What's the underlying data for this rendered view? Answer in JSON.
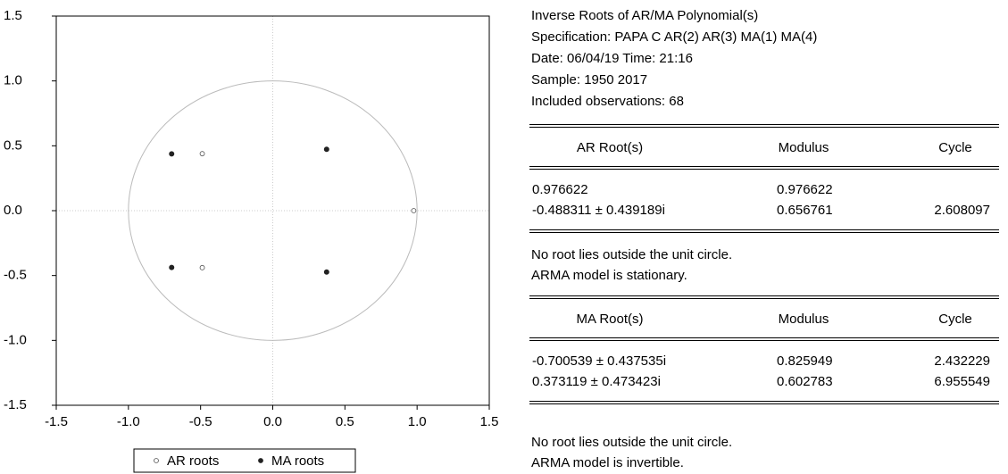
{
  "chart_data": {
    "type": "scatter",
    "series": [
      {
        "name": "AR roots",
        "color": "#555555",
        "marker": "open",
        "x": [
          0.976622,
          -0.488311,
          -0.488311
        ],
        "values": [
          0,
          0.439189,
          -0.439189
        ]
      },
      {
        "name": "MA roots",
        "color": "#222222",
        "marker": "filled",
        "x": [
          -0.700539,
          -0.700539,
          0.373119,
          0.373119
        ],
        "values": [
          0.437535,
          -0.437535,
          0.473423,
          -0.473423
        ]
      }
    ],
    "xlim": [
      -1.5,
      1.5
    ],
    "ylim": [
      -1.5,
      1.5
    ],
    "xticks": [
      -1.5,
      {
        "value": -1,
        "label": "-1.0"
      },
      -0.5,
      {
        "value": 0,
        "label": "0.0"
      },
      0.5,
      {
        "value": 1,
        "label": "1.0"
      },
      1.5
    ],
    "yticks": [
      -1.5,
      {
        "value": -1,
        "label": "-1.0"
      },
      -0.5,
      {
        "value": 0,
        "label": "0.0"
      },
      0.5,
      {
        "value": 1,
        "label": "1.0"
      },
      1.5
    ],
    "grid": false,
    "legend": "bottom"
  },
  "report": {
    "header": [
      "Inverse Roots of AR/MA Polynomial(s)",
      "Specification: PAPA C AR(2) AR(3) MA(1) MA(4)",
      "Date: 06/04/19   Time: 21:16",
      "Sample: 1950 2017",
      "Included observations: 68"
    ],
    "ar_table": {
      "headers": [
        "AR Root(s)",
        "Modulus",
        "Cycle"
      ],
      "rows": [
        [
          "0.976622",
          "0.976622"
        ],
        [
          "-0.488311 ± 0.439189i",
          "0.656761",
          "2.608097"
        ]
      ]
    },
    "ar_notes": [
      "No root lies outside the unit circle.",
      "ARMA model is stationary."
    ],
    "ma_table": {
      "headers": [
        "MA Root(s)",
        "Modulus",
        "Cycle"
      ],
      "rows": [
        [
          "-0.700539 ± 0.437535i",
          "0.825949",
          "2.432229"
        ],
        [
          "0.373119 ± 0.473423i",
          "0.602783",
          "6.955549"
        ]
      ]
    },
    "ma_notes": [
      "No root lies outside the unit circle.",
      "ARMA model is invertible."
    ]
  }
}
